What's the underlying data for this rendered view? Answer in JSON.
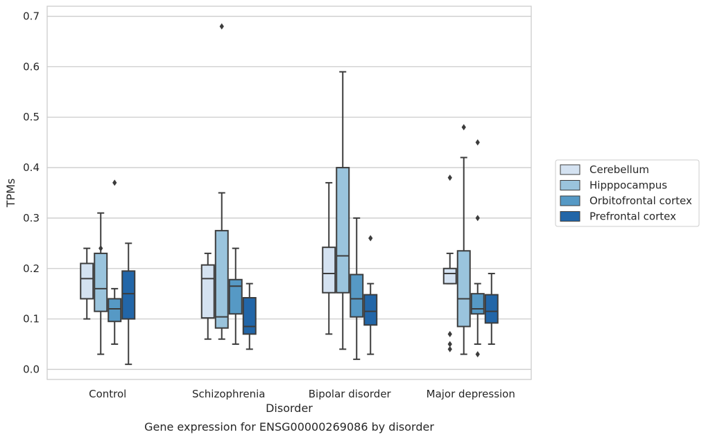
{
  "chart_data": {
    "type": "box",
    "caption": "Gene expression for ENSG00000269086 by disorder",
    "xlabel": "Disorder",
    "ylabel": "TPMs",
    "ylim": [
      -0.02,
      0.72
    ],
    "yticks": [
      0.0,
      0.1,
      0.2,
      0.3,
      0.4,
      0.5,
      0.6,
      0.7
    ],
    "ytick_labels": [
      "0.0",
      "0.1",
      "0.2",
      "0.3",
      "0.4",
      "0.5",
      "0.6",
      "0.7"
    ],
    "grid": "horizontal",
    "legend_position": "right",
    "categories": [
      "Control",
      "Schizophrenia",
      "Bipolar disorder",
      "Major depression"
    ],
    "series": [
      {
        "name": "Cerebellum",
        "color": "#d4e2f1",
        "boxes": [
          {
            "whisker_low": 0.1,
            "q1": 0.14,
            "median": 0.18,
            "q3": 0.21,
            "whisker_high": 0.24,
            "outliers": []
          },
          {
            "whisker_low": 0.06,
            "q1": 0.102,
            "median": 0.18,
            "q3": 0.207,
            "whisker_high": 0.23,
            "outliers": []
          },
          {
            "whisker_low": 0.07,
            "q1": 0.152,
            "median": 0.19,
            "q3": 0.242,
            "whisker_high": 0.37,
            "outliers": []
          },
          {
            "whisker_low": 0.17,
            "q1": 0.17,
            "median": 0.19,
            "q3": 0.2,
            "whisker_high": 0.23,
            "outliers": [
              0.38,
              0.07,
              0.05,
              0.04
            ]
          }
        ]
      },
      {
        "name": "Hipppocampus",
        "color": "#9ac4dd",
        "boxes": [
          {
            "whisker_low": 0.03,
            "q1": 0.115,
            "median": 0.16,
            "q3": 0.23,
            "whisker_high": 0.31,
            "outliers": [
              0.24
            ]
          },
          {
            "whisker_low": 0.06,
            "q1": 0.082,
            "median": 0.104,
            "q3": 0.275,
            "whisker_high": 0.35,
            "outliers": [
              0.68
            ]
          },
          {
            "whisker_low": 0.04,
            "q1": 0.152,
            "median": 0.225,
            "q3": 0.4,
            "whisker_high": 0.59,
            "outliers": []
          },
          {
            "whisker_low": 0.03,
            "q1": 0.085,
            "median": 0.14,
            "q3": 0.235,
            "whisker_high": 0.42,
            "outliers": [
              0.48
            ]
          }
        ]
      },
      {
        "name": "Orbitofrontal cortex",
        "color": "#5699c5",
        "boxes": [
          {
            "whisker_low": 0.05,
            "q1": 0.095,
            "median": 0.12,
            "q3": 0.14,
            "whisker_high": 0.16,
            "outliers": [
              0.37
            ]
          },
          {
            "whisker_low": 0.05,
            "q1": 0.11,
            "median": 0.165,
            "q3": 0.178,
            "whisker_high": 0.24,
            "outliers": []
          },
          {
            "whisker_low": 0.02,
            "q1": 0.104,
            "median": 0.14,
            "q3": 0.188,
            "whisker_high": 0.3,
            "outliers": []
          },
          {
            "whisker_low": 0.05,
            "q1": 0.11,
            "median": 0.12,
            "q3": 0.15,
            "whisker_high": 0.17,
            "outliers": [
              0.45,
              0.3,
              0.03
            ]
          }
        ]
      },
      {
        "name": "Prefrontal cortex",
        "color": "#2266a8",
        "boxes": [
          {
            "whisker_low": 0.01,
            "q1": 0.1,
            "median": 0.15,
            "q3": 0.195,
            "whisker_high": 0.25,
            "outliers": []
          },
          {
            "whisker_low": 0.04,
            "q1": 0.07,
            "median": 0.085,
            "q3": 0.142,
            "whisker_high": 0.17,
            "outliers": []
          },
          {
            "whisker_low": 0.03,
            "q1": 0.088,
            "median": 0.115,
            "q3": 0.148,
            "whisker_high": 0.17,
            "outliers": [
              0.26
            ]
          },
          {
            "whisker_low": 0.05,
            "q1": 0.092,
            "median": 0.115,
            "q3": 0.148,
            "whisker_high": 0.19,
            "outliers": []
          }
        ]
      }
    ]
  }
}
